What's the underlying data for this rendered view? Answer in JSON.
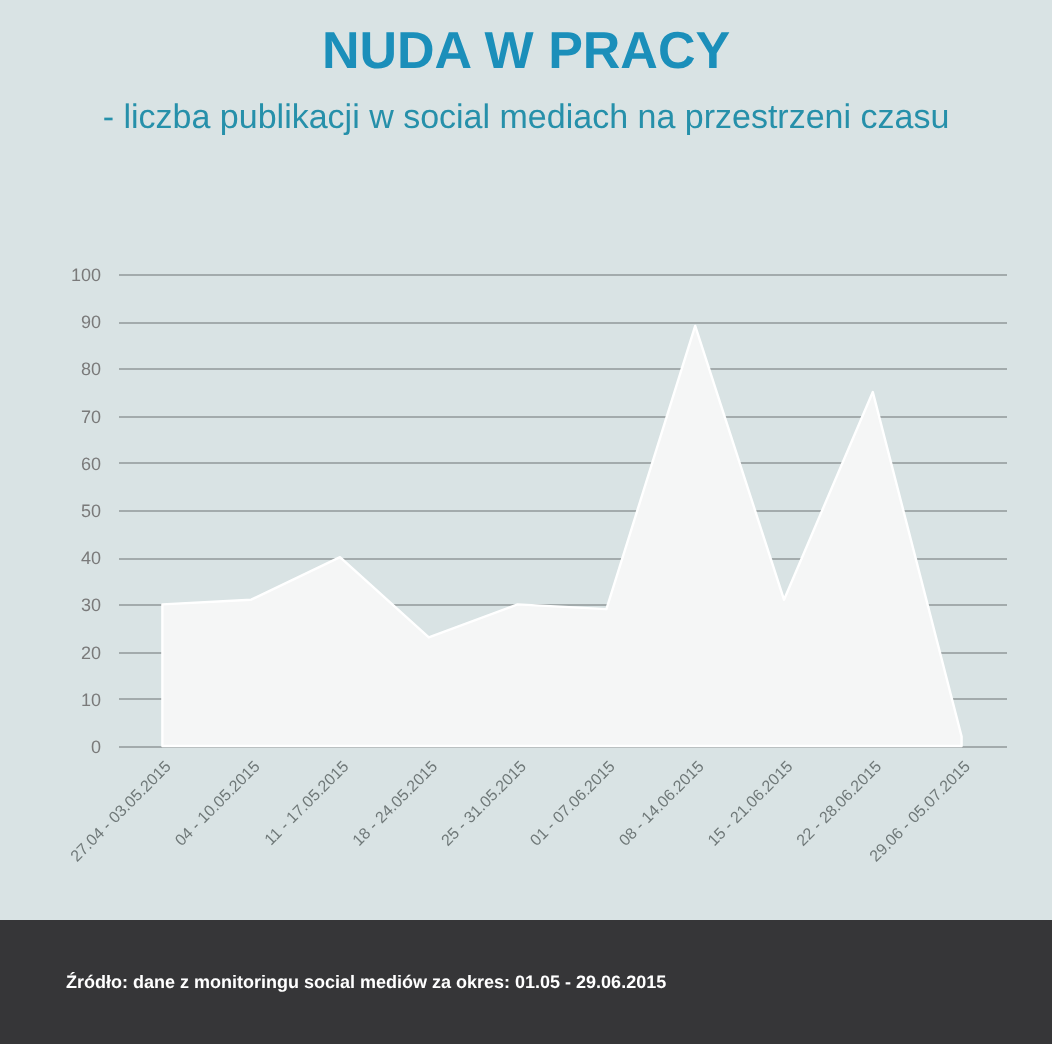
{
  "chart_data": {
    "type": "area",
    "title": "NUDA W PRACY",
    "subtitle": "- liczba publikacji w social mediach na przestrzeni czasu",
    "categories": [
      "27.04 - 03.05.2015",
      "04 - 10.05.2015",
      "11 - 17.05.2015",
      "18 - 24.05.2015",
      "25 - 31.05.2015",
      "01 - 07.06.2015",
      "08 - 14.06.2015",
      "15 - 21.06.2015",
      "22 - 28.06.2015",
      "29.06 - 05.07.2015"
    ],
    "series": [
      {
        "color": "#f5f6f6",
        "values": [
          30,
          31,
          40,
          23,
          30,
          29,
          89,
          31,
          75,
          2
        ]
      }
    ],
    "ylim": [
      0,
      100
    ],
    "yticks": [
      0,
      10,
      20,
      30,
      40,
      50,
      60,
      70,
      80,
      90,
      100
    ],
    "grid": "y",
    "annotations": [
      "Źródło: dane z monitoringu social mediów za okres: 01.05 - 29.06.2015"
    ]
  }
}
